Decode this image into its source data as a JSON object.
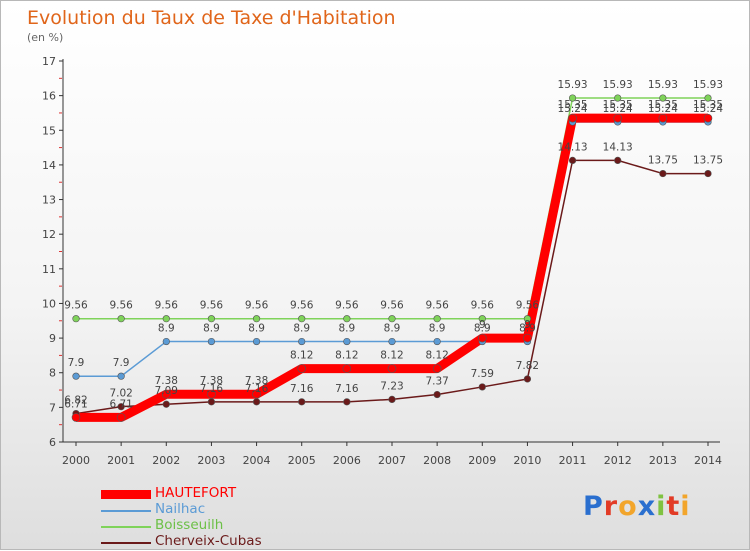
{
  "title": "Evolution du Taux de Taxe d'Habitation",
  "subtitle": "(en %)",
  "logo": {
    "letters": [
      {
        "ch": "P",
        "color": "#2a6fcf"
      },
      {
        "ch": "r",
        "color": "#e23b26"
      },
      {
        "ch": "o",
        "color": "#f2a52b"
      },
      {
        "ch": "x",
        "color": "#2a6fcf"
      },
      {
        "ch": "i",
        "color": "#7fc241"
      },
      {
        "ch": "t",
        "color": "#e23b26"
      },
      {
        "ch": "i",
        "color": "#f2a52b"
      }
    ]
  },
  "chart_data": {
    "type": "line",
    "x": [
      "2000",
      "2001",
      "2002",
      "2003",
      "2004",
      "2005",
      "2006",
      "2007",
      "2008",
      "2009",
      "2010",
      "2011",
      "2012",
      "2013",
      "2014"
    ],
    "ylim": [
      6,
      17
    ],
    "yticks": [
      6,
      7,
      8,
      9,
      10,
      11,
      12,
      13,
      14,
      15,
      16,
      17
    ],
    "legend_position": "bottom-left",
    "grid": false,
    "series": [
      {
        "name": "HAUTEFORT",
        "color": "#ff0000",
        "values": [
          6.71,
          6.71,
          7.38,
          7.38,
          7.38,
          8.12,
          8.12,
          8.12,
          8.12,
          9.0,
          9.0,
          15.35,
          15.35,
          15.35,
          15.35
        ]
      },
      {
        "name": "Nailhac",
        "color": "#5b9bd5",
        "values": [
          7.9,
          7.9,
          8.9,
          8.9,
          8.9,
          8.9,
          8.9,
          8.9,
          8.9,
          8.9,
          8.9,
          15.24,
          15.24,
          15.24,
          15.24
        ]
      },
      {
        "name": "Boisseuilh",
        "color": "#7fd35a",
        "values": [
          9.56,
          9.56,
          9.56,
          9.56,
          9.56,
          9.56,
          9.56,
          9.56,
          9.56,
          9.56,
          9.56,
          15.93,
          15.93,
          15.93,
          15.93
        ]
      },
      {
        "name": "Cherveix-Cubas",
        "color": "#6b1a1a",
        "values": [
          6.82,
          7.02,
          7.09,
          7.16,
          7.16,
          7.16,
          7.16,
          7.23,
          7.37,
          7.59,
          7.82,
          14.13,
          14.13,
          13.75,
          13.75
        ]
      }
    ],
    "data_labels": [
      {
        "series": 0,
        "labels": [
          "6.71",
          "6.71",
          "7.38",
          "7.38",
          "7.38",
          "8.12",
          "8.12",
          "8.12",
          "8.12",
          "9",
          "9",
          "15.35",
          "15.35",
          "15.35",
          "15.35"
        ]
      },
      {
        "series": 1,
        "labels": [
          "7.9",
          "7.9",
          "8.9",
          "8.9",
          "8.9",
          "8.9",
          "8.9",
          "8.9",
          "8.9",
          "8.9",
          "8.9",
          "15.24",
          "15.24",
          "15.24",
          "15.24"
        ]
      },
      {
        "series": 2,
        "labels": [
          "9.56",
          "9.56",
          "9.56",
          "9.56",
          "9.56",
          "9.56",
          "9.56",
          "9.56",
          "9.56",
          "9.56",
          "9.56",
          "15.93",
          "15.93",
          "15.93",
          "15.93"
        ]
      },
      {
        "series": 3,
        "labels": [
          "6.82",
          "7.02",
          "7.09",
          "7.16",
          "7.16",
          "7.16",
          "7.16",
          "7.23",
          "7.37",
          "7.59",
          "7.82",
          "14.13",
          "14.13",
          "13.75",
          "13.75"
        ]
      }
    ]
  }
}
